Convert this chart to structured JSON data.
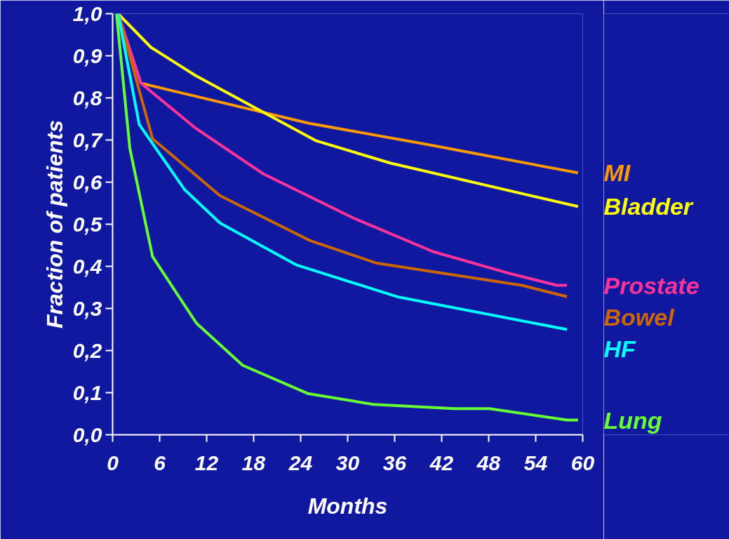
{
  "chart_data": {
    "type": "line",
    "xlabel": "Months",
    "ylabel": "Fraction of patients",
    "xlim": [
      0,
      60
    ],
    "ylim": [
      0,
      1
    ],
    "xticks": [
      0,
      6,
      12,
      18,
      24,
      30,
      36,
      42,
      48,
      54,
      60
    ],
    "yticks": [
      {
        "value": 0,
        "label": "0,0"
      },
      {
        "value": 0.1,
        "label": "0,1"
      },
      {
        "value": 0.2,
        "label": "0,2"
      },
      {
        "value": 0.3,
        "label": "0,3"
      },
      {
        "value": 0.4,
        "label": "0,4"
      },
      {
        "value": 0.5,
        "label": "0,5"
      },
      {
        "value": 0.6,
        "label": "0,6"
      },
      {
        "value": 0.7,
        "label": "0,7"
      },
      {
        "value": 0.8,
        "label": "0,8"
      },
      {
        "value": 0.9,
        "label": "0,9"
      },
      {
        "value": 1.0,
        "label": "1,0"
      }
    ],
    "grid": false,
    "marker": "none",
    "line_style": "solid",
    "series": [
      {
        "name": "MI",
        "color": "#ff9900",
        "x": [
          0.7,
          3.6,
          25,
          40,
          59.4
        ],
        "values": [
          1.0,
          0.835,
          0.74,
          0.69,
          0.622
        ]
      },
      {
        "name": "Bladder",
        "color": "#ffff00",
        "x": [
          0.7,
          4.9,
          10.6,
          26,
          35.5,
          59.4
        ],
        "values": [
          1.0,
          0.92,
          0.853,
          0.698,
          0.645,
          0.542
        ]
      },
      {
        "name": "Prostate",
        "color": "#ff3399",
        "x": [
          0.7,
          3.6,
          10.6,
          19.2,
          30.7,
          40.9,
          50.9,
          56.7,
          58
        ],
        "values": [
          1.0,
          0.835,
          0.728,
          0.62,
          0.515,
          0.435,
          0.382,
          0.355,
          0.355
        ]
      },
      {
        "name": "Bowel",
        "color": "#cc6600",
        "x": [
          0.7,
          5.1,
          13.7,
          25.1,
          33.6,
          52.2,
          58
        ],
        "values": [
          1.0,
          0.703,
          0.568,
          0.462,
          0.408,
          0.355,
          0.328
        ]
      },
      {
        "name": "HF",
        "color": "#00ffff",
        "x": [
          0.7,
          3.4,
          9.2,
          13.7,
          23.5,
          36.5,
          58
        ],
        "values": [
          1.0,
          0.737,
          0.582,
          0.503,
          0.403,
          0.327,
          0.25
        ]
      },
      {
        "name": "Lung",
        "color": "#66ff33",
        "x": [
          0.5,
          2.2,
          5.1,
          10.7,
          16.6,
          24.9,
          33.3,
          43.6,
          48.1,
          58,
          59.4
        ],
        "values": [
          1.0,
          0.68,
          0.423,
          0.265,
          0.165,
          0.098,
          0.072,
          0.062,
          0.062,
          0.035,
          0.035
        ]
      }
    ]
  }
}
